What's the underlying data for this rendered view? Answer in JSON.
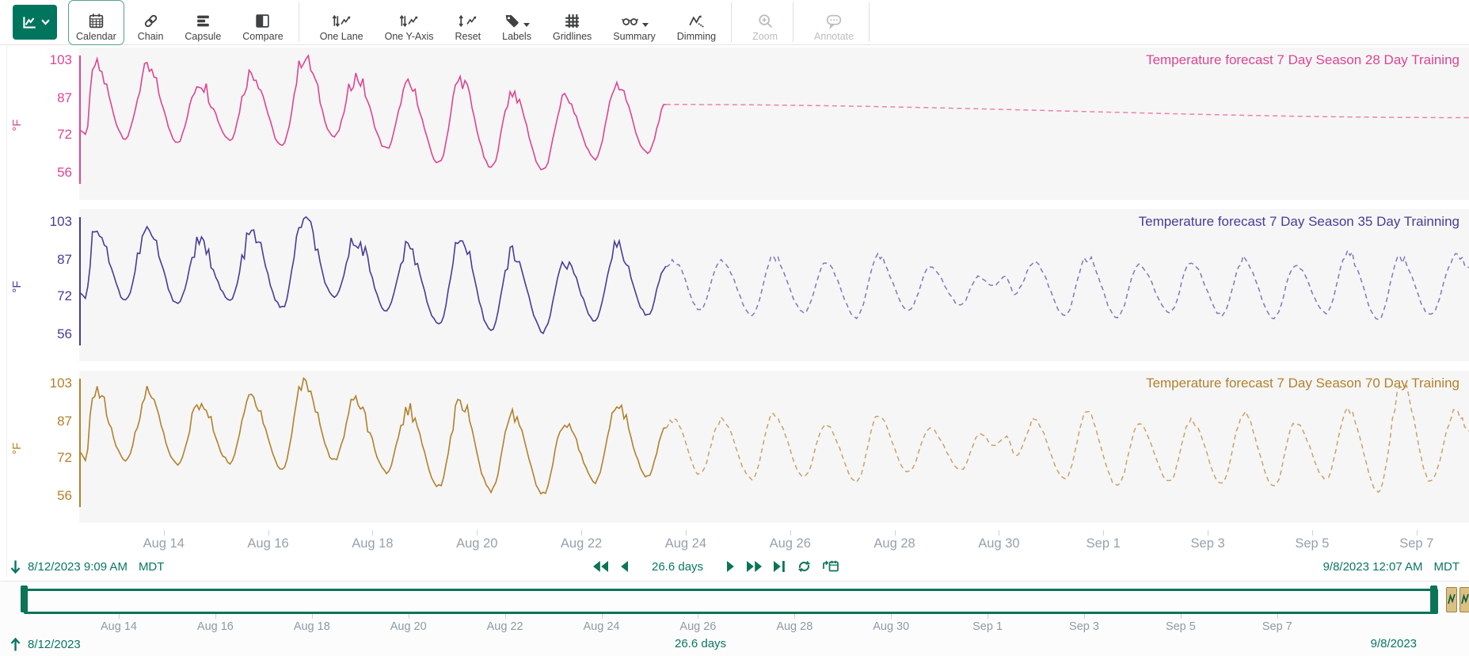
{
  "toolbar": {
    "buttons": [
      {
        "label": "Calendar"
      },
      {
        "label": "Chain"
      },
      {
        "label": "Capsule"
      },
      {
        "label": "Compare"
      },
      {
        "label": "One Lane"
      },
      {
        "label": "One Y-Axis"
      },
      {
        "label": "Reset"
      },
      {
        "label": "Labels"
      },
      {
        "label": "Gridlines"
      },
      {
        "label": "Summary"
      },
      {
        "label": "Dimming"
      },
      {
        "label": "Zoom"
      },
      {
        "label": "Annotate"
      }
    ]
  },
  "colors": {
    "accent_green": "#087663",
    "scrollbar_green": "#0b7457",
    "axis_label_gray": "#97a1ac",
    "lane_background": "#f6f6f7"
  },
  "lanes": [
    {
      "title": "Temperature forecast 7 Day Season 28 Day Training",
      "unit": "°F",
      "color": "#dd4590",
      "forecast_color": "#ef7fae",
      "y_ticks": [
        103,
        87,
        72,
        56
      ]
    },
    {
      "title": "Temperature forecast 7 Day Season 35 Day Trainning",
      "unit": "°F",
      "color": "#4a3b96",
      "forecast_color": "#8177bd",
      "y_ticks": [
        103,
        87,
        72,
        56
      ]
    },
    {
      "title": "Temperature forecast 7 Day Season 70 Day Training",
      "unit": "°F",
      "color": "#b2812a",
      "forecast_color": "#cba264",
      "y_ticks": [
        103,
        87,
        72,
        56
      ]
    }
  ],
  "x_axis": {
    "labels": [
      "Aug 14",
      "Aug 16",
      "Aug 18",
      "Aug 20",
      "Aug 22",
      "Aug 24",
      "Aug 26",
      "Aug 28",
      "Aug 30",
      "Sep 1",
      "Sep 3",
      "Sep 5",
      "Sep 7"
    ]
  },
  "range_bar": {
    "start": "8/12/2023 9:09 AM",
    "start_tz": "MDT",
    "duration": "26.6 days",
    "end": "9/8/2023 12:07 AM",
    "end_tz": "MDT"
  },
  "slider": {
    "labels": [
      "Aug 14",
      "Aug 16",
      "Aug 18",
      "Aug 20",
      "Aug 22",
      "Aug 24",
      "Aug 26",
      "Aug 28",
      "Aug 30",
      "Sep 1",
      "Sep 3",
      "Sep 5",
      "Sep 7"
    ],
    "start": "8/12/2023",
    "duration": "26.6 days",
    "end": "9/8/2023"
  },
  "chart_data": {
    "type": "line",
    "unit": "°F",
    "y_ticks": [
      103,
      87,
      72,
      56
    ],
    "time_start_days": 0.381,
    "time_end_days": 27.005,
    "x_tick_days": [
      2,
      4,
      6,
      8,
      10,
      12,
      14,
      16,
      18,
      20,
      22,
      24,
      26
    ],
    "forecast_start_day": 11.62,
    "historical_anchors": [
      [
        0.381,
        74
      ],
      [
        0.5,
        71.5
      ],
      [
        0.68,
        101
      ],
      [
        1.27,
        70.5
      ],
      [
        1.68,
        99
      ],
      [
        2.27,
        69
      ],
      [
        2.68,
        94
      ],
      [
        3.27,
        70
      ],
      [
        3.68,
        98
      ],
      [
        4.27,
        67
      ],
      [
        4.68,
        104
      ],
      [
        5.27,
        71
      ],
      [
        5.68,
        96
      ],
      [
        6.27,
        66
      ],
      [
        6.68,
        92
      ],
      [
        7.27,
        60
      ],
      [
        7.68,
        95
      ],
      [
        8.27,
        58
      ],
      [
        8.68,
        90
      ],
      [
        9.27,
        57
      ],
      [
        9.68,
        87
      ],
      [
        10.27,
        62
      ],
      [
        10.68,
        93
      ],
      [
        11.27,
        64
      ],
      [
        11.62,
        84.5
      ]
    ],
    "series": [
      {
        "name": "Temperature forecast 7 Day Season 28 Day Training",
        "history_style": "solid",
        "forecast_style": "dashed",
        "forecast_anchors": [
          [
            11.62,
            84.5
          ],
          [
            27.005,
            79
          ]
        ]
      },
      {
        "name": "Temperature forecast 7 Day Season 35 Day Trainning",
        "history_style": "solid",
        "forecast_style": "dashed",
        "forecast_anchors": [
          [
            11.62,
            84.5
          ],
          [
            11.78,
            87
          ],
          [
            12.27,
            66
          ],
          [
            12.68,
            87
          ],
          [
            13.27,
            64
          ],
          [
            13.68,
            88
          ],
          [
            14.27,
            65
          ],
          [
            14.68,
            86
          ],
          [
            15.27,
            63
          ],
          [
            15.68,
            88
          ],
          [
            16.27,
            66
          ],
          [
            16.68,
            84
          ],
          [
            17.27,
            68
          ],
          [
            17.6,
            80
          ],
          [
            17.88,
            76
          ],
          [
            18.12,
            80
          ],
          [
            18.3,
            73
          ],
          [
            18.68,
            86
          ],
          [
            19.27,
            64
          ],
          [
            19.68,
            88
          ],
          [
            20.27,
            63
          ],
          [
            20.68,
            85
          ],
          [
            21.27,
            65
          ],
          [
            21.68,
            86
          ],
          [
            22.27,
            64
          ],
          [
            22.68,
            87
          ],
          [
            23.27,
            63
          ],
          [
            23.68,
            85
          ],
          [
            24.27,
            65
          ],
          [
            24.68,
            90
          ],
          [
            25.27,
            62
          ],
          [
            25.68,
            88
          ],
          [
            26.27,
            64
          ],
          [
            26.75,
            89
          ],
          [
            27.005,
            84
          ]
        ]
      },
      {
        "name": "Temperature forecast 7 Day Season 70 Day Training",
        "history_style": "solid",
        "forecast_style": "dashed",
        "forecast_anchors": [
          [
            11.62,
            84.5
          ],
          [
            11.78,
            88
          ],
          [
            12.27,
            65
          ],
          [
            12.68,
            88
          ],
          [
            13.27,
            63
          ],
          [
            13.68,
            90
          ],
          [
            14.27,
            64
          ],
          [
            14.68,
            86
          ],
          [
            15.27,
            62
          ],
          [
            15.68,
            89
          ],
          [
            16.27,
            66
          ],
          [
            16.68,
            84
          ],
          [
            17.27,
            67
          ],
          [
            17.65,
            82
          ],
          [
            17.9,
            77
          ],
          [
            18.15,
            81
          ],
          [
            18.32,
            73
          ],
          [
            18.68,
            87
          ],
          [
            19.27,
            63
          ],
          [
            19.68,
            90
          ],
          [
            20.27,
            60
          ],
          [
            20.68,
            86
          ],
          [
            21.27,
            62
          ],
          [
            21.68,
            88
          ],
          [
            22.27,
            61
          ],
          [
            22.68,
            90
          ],
          [
            23.27,
            60
          ],
          [
            23.68,
            87
          ],
          [
            24.27,
            63
          ],
          [
            24.68,
            92
          ],
          [
            25.27,
            58
          ],
          [
            25.72,
            103
          ],
          [
            26.27,
            62
          ],
          [
            26.75,
            92
          ],
          [
            27.005,
            83
          ]
        ]
      }
    ]
  }
}
